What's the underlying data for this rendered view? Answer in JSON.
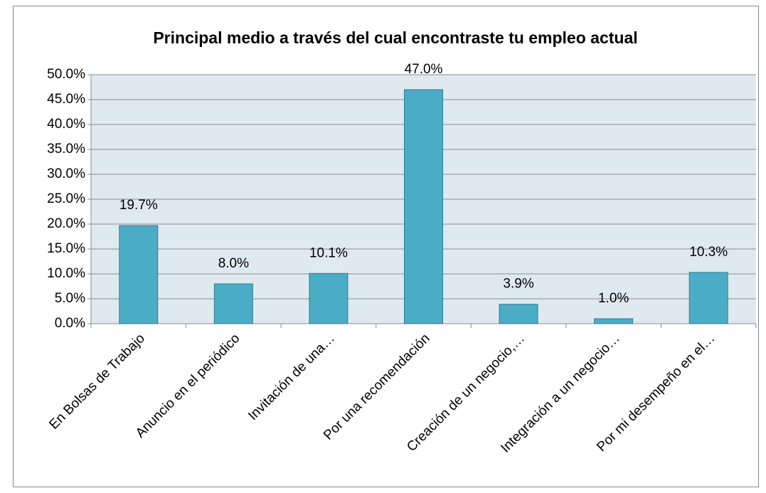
{
  "chart_data": {
    "type": "bar",
    "title": "Principal medio a través del cual encontraste tu empleo actual",
    "categories": [
      "En Bolsas de Trabajo",
      "Anuncio en el periódico",
      "Invitación de una…",
      "Por una recomendación",
      "Creación de un negocio,…",
      "Integración a un negocio…",
      "Por mi desempeño en el…"
    ],
    "values": [
      19.7,
      8.0,
      10.1,
      47.0,
      3.9,
      1.0,
      10.3
    ],
    "value_labels": [
      "19.7%",
      "8.0%",
      "10.1%",
      "47.0%",
      "3.9%",
      "1.0%",
      "10.3%"
    ],
    "color": "#4bacc6",
    "ylim": [
      0,
      50
    ],
    "yticks": [
      {
        "value": 0,
        "label": "0.0%"
      },
      {
        "value": 5,
        "label": "5.0%"
      },
      {
        "value": 10,
        "label": "10.0%"
      },
      {
        "value": 15,
        "label": "15.0%"
      },
      {
        "value": 20,
        "label": "20.0%"
      },
      {
        "value": 25,
        "label": "25.0%"
      },
      {
        "value": 30,
        "label": "30.0%"
      },
      {
        "value": 35,
        "label": "35.0%"
      },
      {
        "value": 40,
        "label": "40.0%"
      },
      {
        "value": 45,
        "label": "45.0%"
      },
      {
        "value": 50,
        "label": "50.0%"
      }
    ],
    "grid": true
  }
}
